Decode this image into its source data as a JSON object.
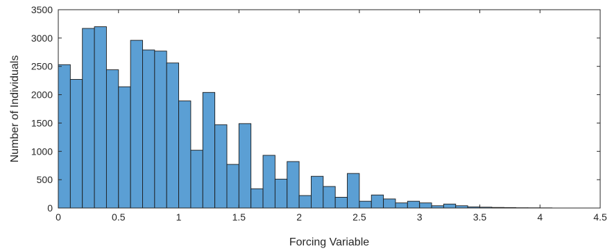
{
  "chart_data": {
    "type": "bar",
    "title": "",
    "xlabel": "Forcing Variable",
    "ylabel": "Number of Individuals",
    "xlim": [
      0,
      4.5
    ],
    "ylim": [
      0,
      3500
    ],
    "bin_width": 0.1,
    "bin_edges_start": [
      0,
      0.1,
      0.2,
      0.3,
      0.4,
      0.5,
      0.6,
      0.7,
      0.8,
      0.9,
      1.0,
      1.1,
      1.2,
      1.3,
      1.4,
      1.5,
      1.6,
      1.7,
      1.8,
      1.9,
      2.0,
      2.1,
      2.2,
      2.3,
      2.4,
      2.5,
      2.6,
      2.7,
      2.8,
      2.9,
      3.0,
      3.1,
      3.2,
      3.3,
      3.4,
      3.5,
      3.6,
      3.7,
      3.8,
      3.9,
      4.0
    ],
    "values": [
      2530,
      2270,
      3170,
      3200,
      2440,
      2140,
      2960,
      2790,
      2770,
      2560,
      1890,
      1020,
      2040,
      1470,
      770,
      1490,
      340,
      930,
      510,
      820,
      220,
      560,
      380,
      190,
      610,
      120,
      230,
      160,
      90,
      120,
      90,
      40,
      70,
      40,
      20,
      15,
      10,
      8,
      5,
      4,
      3
    ],
    "xticks": [
      0,
      0.5,
      1,
      1.5,
      2,
      2.5,
      3,
      3.5,
      4,
      4.5
    ],
    "xtick_labels": [
      "0",
      "0.5",
      "1",
      "1.5",
      "2",
      "2.5",
      "3",
      "3.5",
      "4",
      "4.5"
    ],
    "yticks": [
      0,
      500,
      1000,
      1500,
      2000,
      2500,
      3000,
      3500
    ],
    "ytick_labels": [
      "0",
      "500",
      "1000",
      "1500",
      "2000",
      "2500",
      "3000",
      "3500"
    ],
    "grid": false,
    "bar_color": "#5b9fd4",
    "edge_color": "#1a1a1a"
  }
}
